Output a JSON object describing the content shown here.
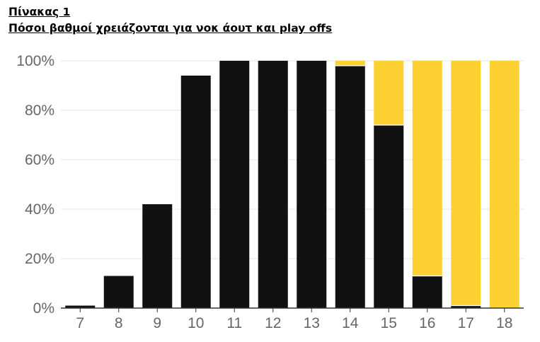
{
  "heading": {
    "line1": "Πίνακας 1",
    "line2": "Πόσοι βαθμοί χρειάζονται για νοκ άουτ και play offs"
  },
  "chart_data": {
    "type": "bar",
    "stacked": true,
    "categories": [
      "7",
      "8",
      "9",
      "10",
      "11",
      "12",
      "13",
      "14",
      "15",
      "16",
      "17",
      "18"
    ],
    "series": [
      {
        "color": "#111111",
        "values": [
          1,
          13,
          42,
          94,
          100,
          100,
          100,
          98,
          74,
          13,
          1,
          0
        ]
      },
      {
        "color": "#fdd132",
        "values": [
          0,
          0,
          0,
          0,
          0,
          0,
          0,
          2,
          26,
          87,
          99,
          100
        ]
      }
    ],
    "ylim": [
      0,
      100
    ],
    "yticks": [
      0,
      20,
      40,
      60,
      80,
      100
    ],
    "ytick_labels": [
      "0%",
      "20%",
      "40%",
      "60%",
      "80%",
      "100%"
    ],
    "grid": true,
    "legend": false
  }
}
